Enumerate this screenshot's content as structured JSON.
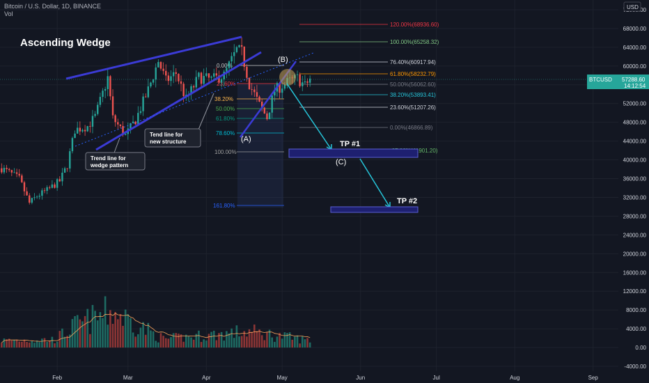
{
  "header": {
    "symbol_line": "Bitcoin / U.S. Dollar, 1D, BINANCE",
    "volume_label": "Vol"
  },
  "price_scale": {
    "currency_box": "USD",
    "ticks": [
      "72000.00",
      "68000.00",
      "64000.00",
      "60000.00",
      "56000.00",
      "52000.00",
      "48000.00",
      "44000.00",
      "40000.00",
      "36000.00",
      "32000.00",
      "28000.00",
      "24000.00",
      "20000.00",
      "16000.00",
      "12000.00",
      "8000.00",
      "4000.00",
      "0.00",
      "-4000.00"
    ]
  },
  "time_scale": {
    "ticks": [
      "Feb",
      "Mar",
      "Apr",
      "May",
      "Jun",
      "Jul",
      "Aug",
      "Sep"
    ]
  },
  "current_price": {
    "ticker": "BTCUSD",
    "price": "57288.60",
    "countdown": "14:12:54",
    "color": "#26a69a"
  },
  "annotations": {
    "title": "Ascending Wedge",
    "callout_wedge": [
      "Trend line for",
      "wedge pattern"
    ],
    "callout_structure": [
      "Tend line for",
      "new structure"
    ],
    "wave_A": "(A)",
    "wave_B": "(B)",
    "wave_C": "(C)",
    "tp1": "TP #1",
    "tp2": "TP #2"
  },
  "fib_retracement": [
    {
      "label": "0.00%",
      "color": "#c8c8c8"
    },
    {
      "label": "23.60%",
      "color": "#f23645"
    },
    {
      "label": "38.20%",
      "color": "#ffb74d"
    },
    {
      "label": "50.00%",
      "color": "#4caf50"
    },
    {
      "label": "61.80%",
      "color": "#089981"
    },
    {
      "label": "78.60%",
      "color": "#00bcd4"
    },
    {
      "label": "100.00%",
      "color": "#9e9e9e"
    },
    {
      "label": "161.80%",
      "color": "#2962ff"
    }
  ],
  "fib_extension": [
    {
      "label": "120.00%(68936.60)",
      "color": "#f23645"
    },
    {
      "label": "100.00%(65258.32)",
      "color": "#81c784"
    },
    {
      "label": "76.40%(60917.94)",
      "color": "#d1d4dc"
    },
    {
      "label": "61.80%(58232.79)",
      "color": "#ff9800"
    },
    {
      "label": "50.00%(56062.60)",
      "color": "#787b86"
    },
    {
      "label": "38.20%(53893.41)",
      "color": "#26c6da"
    },
    {
      "label": "23.60%(51207.26)",
      "color": "#d1d4dc"
    },
    {
      "label": "0.00%(46866.89)",
      "color": "#787b86"
    },
    {
      "label": "-27.00%(41901.20)",
      "color": "#66bb6a"
    }
  ],
  "chart_data": {
    "type": "candlestick",
    "symbol": "BTCUSD",
    "timeframe": "1D",
    "exchange": "BINANCE",
    "y_range": [
      -4000,
      72000
    ],
    "x_ticks": [
      "Feb",
      "Mar",
      "Apr",
      "May",
      "Jun",
      "Jul",
      "Aug",
      "Sep"
    ],
    "close_anchors": [
      {
        "date": "2021-01-10",
        "close": 38200
      },
      {
        "date": "2021-01-13",
        "close": 37300
      },
      {
        "date": "2021-01-17",
        "close": 36000
      },
      {
        "date": "2021-01-21",
        "close": 30800
      },
      {
        "date": "2021-01-24",
        "close": 32300
      },
      {
        "date": "2021-01-28",
        "close": 33500
      },
      {
        "date": "2021-02-02",
        "close": 35500
      },
      {
        "date": "2021-02-05",
        "close": 38900
      },
      {
        "date": "2021-02-08",
        "close": 46400
      },
      {
        "date": "2021-02-13",
        "close": 47200
      },
      {
        "date": "2021-02-16",
        "close": 49200
      },
      {
        "date": "2021-02-21",
        "close": 57500
      },
      {
        "date": "2021-02-23",
        "close": 48900
      },
      {
        "date": "2021-02-28",
        "close": 45200
      },
      {
        "date": "2021-03-04",
        "close": 48500
      },
      {
        "date": "2021-03-09",
        "close": 54900
      },
      {
        "date": "2021-03-13",
        "close": 61100
      },
      {
        "date": "2021-03-16",
        "close": 56800
      },
      {
        "date": "2021-03-20",
        "close": 58500
      },
      {
        "date": "2021-03-24",
        "close": 52900
      },
      {
        "date": "2021-03-29",
        "close": 57600
      },
      {
        "date": "2021-04-03",
        "close": 57100
      },
      {
        "date": "2021-04-08",
        "close": 58000
      },
      {
        "date": "2021-04-13",
        "close": 63400
      },
      {
        "date": "2021-04-15",
        "close": 62900
      },
      {
        "date": "2021-04-18",
        "close": 56200
      },
      {
        "date": "2021-04-22",
        "close": 51700
      },
      {
        "date": "2021-04-25",
        "close": 49000
      },
      {
        "date": "2021-04-28",
        "close": 54800
      },
      {
        "date": "2021-05-03",
        "close": 56500
      },
      {
        "date": "2021-05-07",
        "close": 57400
      },
      {
        "date": "2021-05-10",
        "close": 55800
      },
      {
        "date": "2021-05-12",
        "close": 57288.6
      }
    ],
    "volume_anchors": [
      {
        "date": "2021-01-10",
        "volume": 1500
      },
      {
        "date": "2021-01-31",
        "volume": 1700
      },
      {
        "date": "2021-02-08",
        "volume": 4600
      },
      {
        "date": "2021-02-23",
        "volume": 7700
      },
      {
        "date": "2021-03-15",
        "volume": 1800
      },
      {
        "date": "2021-04-18",
        "volume": 3400
      },
      {
        "date": "2021-05-12",
        "volume": 1500
      }
    ]
  }
}
